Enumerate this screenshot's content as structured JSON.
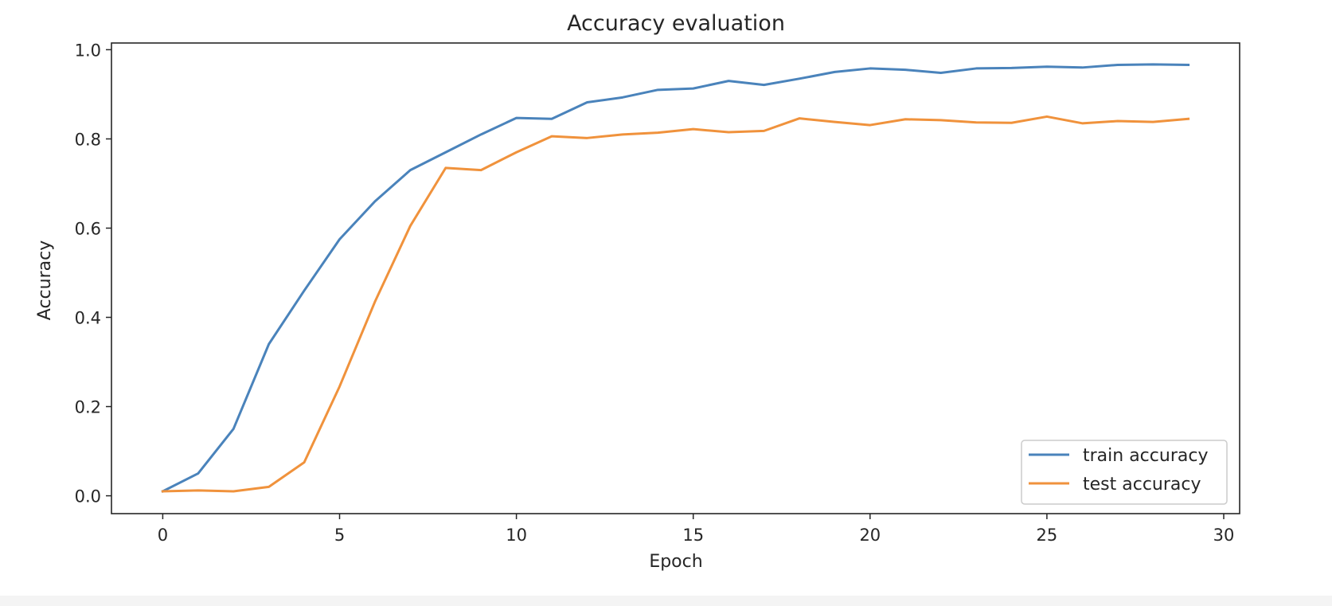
{
  "chart_data": {
    "type": "line",
    "title": "Accuracy evaluation",
    "xlabel": "Epoch",
    "ylabel": "Accuracy",
    "xlim": [
      -1.45,
      30.45
    ],
    "ylim": [
      -0.04,
      1.015
    ],
    "xticks": [
      0,
      5,
      10,
      15,
      20,
      25,
      30
    ],
    "xtick_labels": [
      "0",
      "5",
      "10",
      "15",
      "20",
      "25",
      "30"
    ],
    "yticks": [
      0.0,
      0.2,
      0.4,
      0.6,
      0.8,
      1.0
    ],
    "ytick_labels": [
      "0.0",
      "0.2",
      "0.4",
      "0.6",
      "0.8",
      "1.0"
    ],
    "grid": false,
    "legend_position": "lower-right",
    "x": [
      0,
      1,
      2,
      3,
      4,
      5,
      6,
      7,
      8,
      9,
      10,
      11,
      12,
      13,
      14,
      15,
      16,
      17,
      18,
      19,
      20,
      21,
      22,
      23,
      24,
      25,
      26,
      27,
      28,
      29
    ],
    "series": [
      {
        "name": "train accuracy",
        "color": "#4a83bb",
        "values": [
          0.01,
          0.05,
          0.15,
          0.34,
          0.46,
          0.575,
          0.66,
          0.73,
          0.77,
          0.81,
          0.847,
          0.845,
          0.882,
          0.893,
          0.91,
          0.913,
          0.93,
          0.921,
          0.935,
          0.95,
          0.958,
          0.955,
          0.948,
          0.958,
          0.959,
          0.962,
          0.96,
          0.966,
          0.967,
          0.966
        ]
      },
      {
        "name": "test accuracy",
        "color": "#f0923c",
        "values": [
          0.01,
          0.012,
          0.01,
          0.02,
          0.075,
          0.245,
          0.435,
          0.605,
          0.735,
          0.73,
          0.77,
          0.806,
          0.802,
          0.81,
          0.814,
          0.822,
          0.815,
          0.818,
          0.846,
          0.838,
          0.831,
          0.844,
          0.842,
          0.837,
          0.836,
          0.85,
          0.835,
          0.84,
          0.838,
          0.845
        ]
      }
    ]
  }
}
